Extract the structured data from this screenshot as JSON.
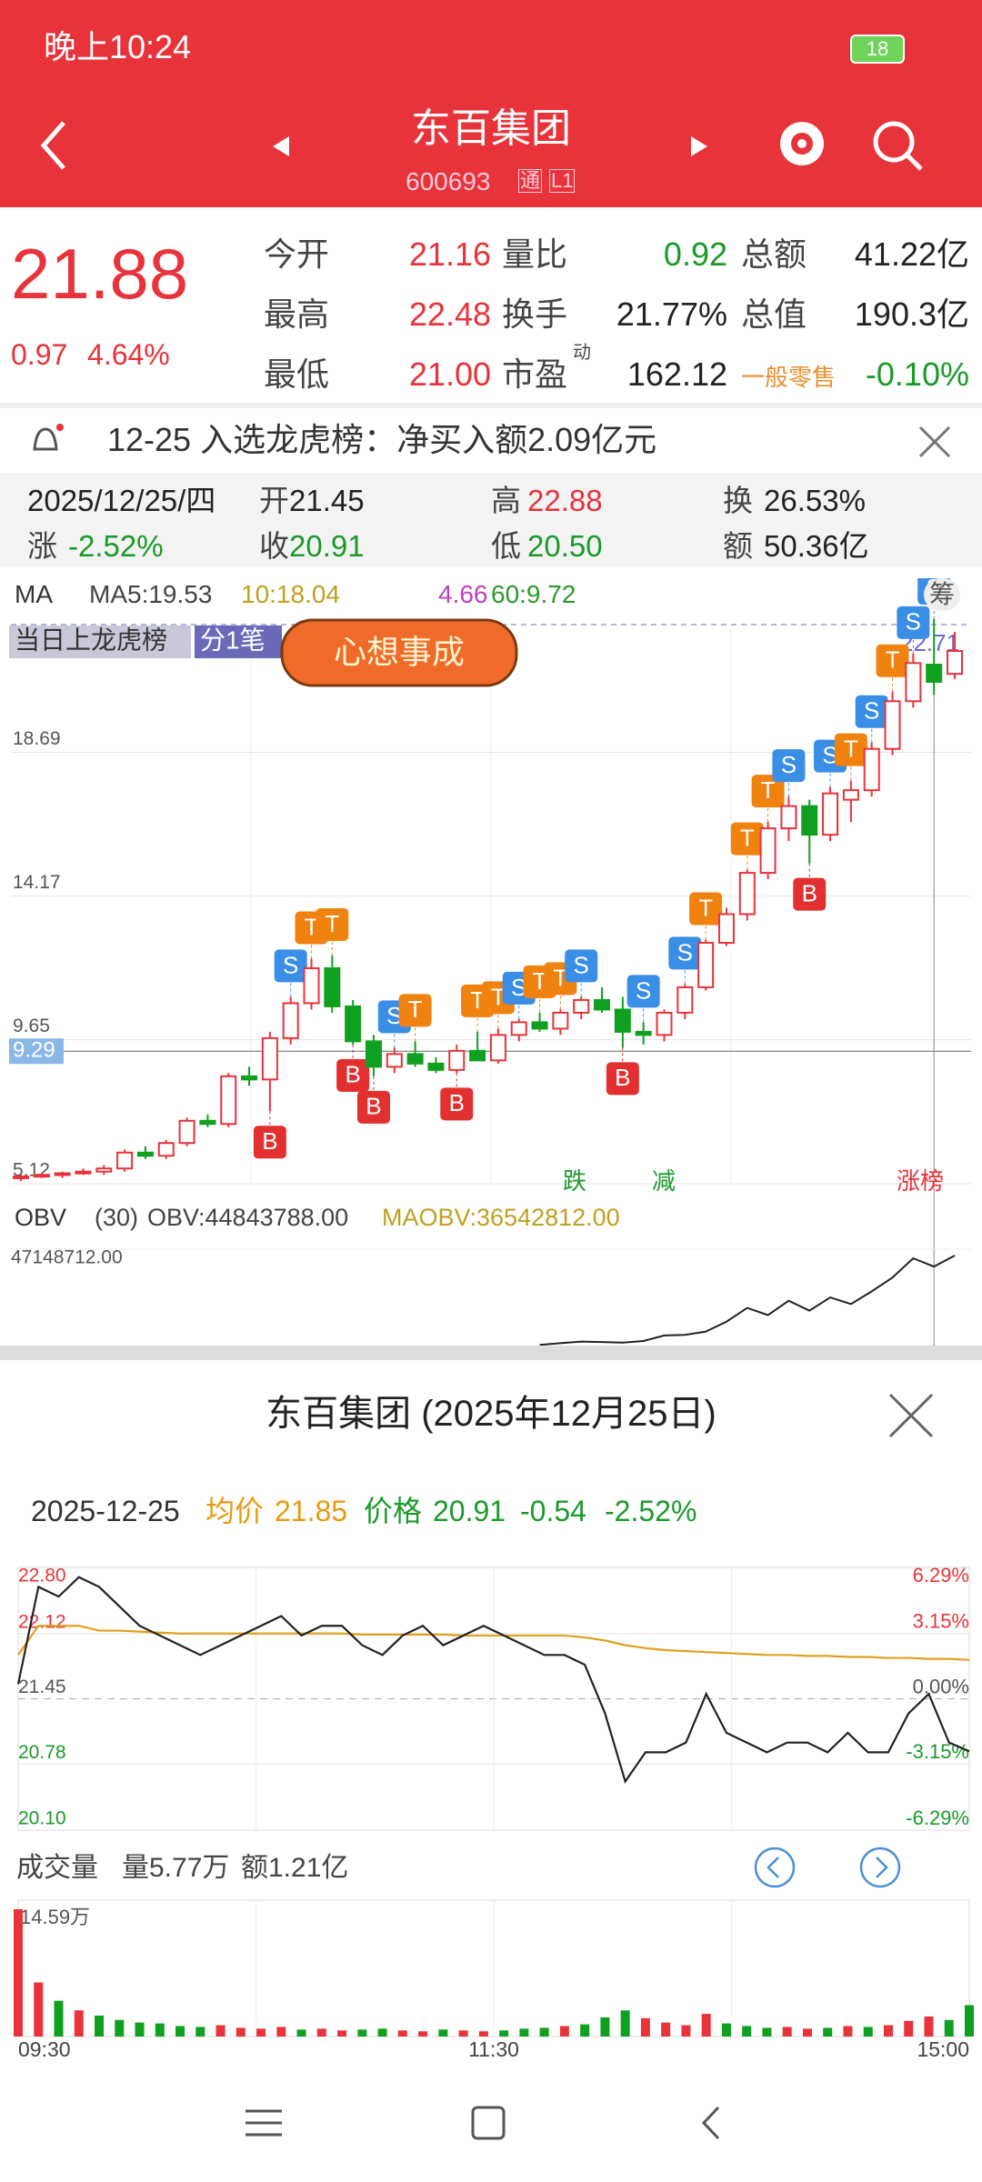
{
  "status": {
    "time": "晚上10:24",
    "battery": "18"
  },
  "header": {
    "title": "东百集团",
    "code": "600693",
    "badge1": "通",
    "badge2": "L1"
  },
  "quote": {
    "price": "21.88",
    "change": "0.97",
    "change_pct": "4.64%",
    "stats": [
      [
        "今开",
        "21.16",
        "量比",
        "0.92",
        "总额",
        "41.22亿"
      ],
      [
        "最高",
        "22.48",
        "换手",
        "21.77%",
        "总值",
        "190.3亿"
      ],
      [
        "最低",
        "21.00",
        "市盈",
        "162.12",
        "一般零售",
        "-0.10%"
      ]
    ],
    "pe_sup": "动"
  },
  "notice": "12-25 入选龙虎榜：净买入额2.09亿元",
  "day": {
    "date": "2025/12/25/四",
    "open_l": "开",
    "open": "21.45",
    "high_l": "高",
    "high": "22.88",
    "turn_l": "换",
    "turn": "26.53%",
    "chg_l": "涨",
    "chg": "-2.52%",
    "close_l": "收",
    "close": "20.91",
    "low_l": "低",
    "low": "20.50",
    "amt_l": "额",
    "amt": "50.36亿"
  },
  "ma": {
    "name": "MA",
    "ma5": "MA5:19.53",
    "ma10": "10:18.04",
    "ma30": "4.66",
    "ma60": "60:9.72",
    "chip": "筹"
  },
  "tags": {
    "t1": "当日上龙虎榜",
    "t2": "分1笔",
    "sticker": "心想事成",
    "down": "跌",
    "reduce": "减",
    "list": "涨榜"
  },
  "kline": {
    "ylim": [
      5.12,
      22.71
    ],
    "yticks": [
      5.12,
      9.65,
      14.17,
      18.69
    ],
    "top_label": 22.71,
    "cursor": 9.29,
    "candles": [
      {
        "ohlc": [
          5.3,
          5.4,
          5.2,
          5.35
        ]
      },
      {
        "ohlc": [
          5.35,
          5.45,
          5.3,
          5.4
        ]
      },
      {
        "ohlc": [
          5.4,
          5.5,
          5.3,
          5.45
        ]
      },
      {
        "ohlc": [
          5.45,
          5.6,
          5.4,
          5.5
        ]
      },
      {
        "ohlc": [
          5.5,
          5.7,
          5.4,
          5.6
        ]
      },
      {
        "ohlc": [
          5.6,
          6.2,
          5.5,
          6.1
        ]
      },
      {
        "ohlc": [
          6.1,
          6.3,
          5.9,
          6.0
        ]
      },
      {
        "ohlc": [
          6.0,
          6.5,
          5.9,
          6.4
        ]
      },
      {
        "ohlc": [
          6.4,
          7.2,
          6.3,
          7.1
        ]
      },
      {
        "ohlc": [
          7.1,
          7.3,
          6.9,
          7.0
        ]
      },
      {
        "ohlc": [
          7.0,
          8.6,
          6.9,
          8.5
        ]
      },
      {
        "ohlc": [
          8.5,
          8.8,
          8.2,
          8.4
        ]
      },
      {
        "ohlc": [
          8.4,
          9.9,
          7.4,
          9.7
        ],
        "tags": [
          "B"
        ]
      },
      {
        "ohlc": [
          9.7,
          11.0,
          9.5,
          10.8
        ],
        "tags": [
          "S"
        ]
      },
      {
        "ohlc": [
          10.8,
          12.2,
          10.6,
          11.9
        ],
        "tags": [
          "T"
        ]
      },
      {
        "ohlc": [
          11.9,
          12.3,
          10.5,
          10.7
        ],
        "tags": [
          "T"
        ]
      },
      {
        "ohlc": [
          10.7,
          10.9,
          9.5,
          9.6
        ],
        "tags": [
          "B"
        ]
      },
      {
        "ohlc": [
          9.6,
          9.8,
          8.5,
          8.8
        ],
        "tags": [
          "B"
        ]
      },
      {
        "ohlc": [
          8.8,
          9.4,
          8.6,
          9.2
        ],
        "tags": [
          "S"
        ]
      },
      {
        "ohlc": [
          9.2,
          9.6,
          8.8,
          8.9
        ],
        "tags": [
          "T"
        ]
      },
      {
        "ohlc": [
          8.9,
          9.1,
          8.6,
          8.7
        ]
      },
      {
        "ohlc": [
          8.7,
          9.5,
          8.6,
          9.3
        ],
        "tags": [
          "B"
        ]
      },
      {
        "ohlc": [
          9.3,
          9.9,
          9.1,
          9.0
        ],
        "tags": [
          "T"
        ]
      },
      {
        "ohlc": [
          9.0,
          10.0,
          8.9,
          9.8
        ],
        "tags": [
          "T"
        ]
      },
      {
        "ohlc": [
          9.8,
          10.3,
          9.6,
          10.2
        ],
        "tags": [
          "S"
        ]
      },
      {
        "ohlc": [
          10.2,
          10.5,
          9.9,
          10.0
        ],
        "tags": [
          "T"
        ]
      },
      {
        "ohlc": [
          10.0,
          10.6,
          9.8,
          10.5
        ],
        "tags": [
          "T"
        ]
      },
      {
        "ohlc": [
          10.5,
          11.0,
          10.3,
          10.9
        ],
        "tags": [
          "S"
        ]
      },
      {
        "ohlc": [
          10.9,
          11.3,
          10.5,
          10.6
        ]
      },
      {
        "ohlc": [
          10.6,
          11.0,
          9.4,
          9.9
        ],
        "tags": [
          "B"
        ]
      },
      {
        "ohlc": [
          9.9,
          10.2,
          9.5,
          9.8
        ],
        "tags": [
          "S"
        ]
      },
      {
        "ohlc": [
          9.8,
          10.6,
          9.6,
          10.5
        ]
      },
      {
        "ohlc": [
          10.5,
          11.4,
          10.3,
          11.3
        ],
        "tags": [
          "S"
        ]
      },
      {
        "ohlc": [
          11.3,
          12.8,
          11.2,
          12.7
        ],
        "tags": [
          "T"
        ]
      },
      {
        "ohlc": [
          12.7,
          13.8,
          12.6,
          13.6
        ]
      },
      {
        "ohlc": [
          13.6,
          15.0,
          13.4,
          14.9
        ],
        "tags": [
          "T"
        ]
      },
      {
        "ohlc": [
          14.9,
          16.5,
          14.7,
          16.3
        ],
        "tags": [
          "T"
        ]
      },
      {
        "ohlc": [
          16.3,
          17.3,
          15.9,
          17.0
        ],
        "tags": [
          "S"
        ]
      },
      {
        "ohlc": [
          17.0,
          17.2,
          15.2,
          16.1
        ],
        "tags": [
          "B"
        ]
      },
      {
        "ohlc": [
          16.1,
          17.6,
          15.9,
          17.4
        ],
        "tags": [
          "S"
        ]
      },
      {
        "ohlc": [
          17.2,
          17.8,
          16.5,
          17.5
        ],
        "tags": [
          "T"
        ]
      },
      {
        "ohlc": [
          17.5,
          19.0,
          17.3,
          18.8
        ],
        "tags": [
          "S"
        ]
      },
      {
        "ohlc": [
          18.8,
          20.6,
          18.6,
          20.3
        ],
        "tags": [
          "T"
        ]
      },
      {
        "ohlc": [
          20.3,
          21.8,
          20.1,
          21.5
        ],
        "tags": [
          "S"
        ]
      },
      {
        "ohlc": [
          21.45,
          22.88,
          20.5,
          20.91
        ],
        "tags": [
          "S"
        ]
      },
      {
        "ohlc": [
          21.16,
          22.48,
          21.0,
          21.88
        ]
      }
    ]
  },
  "obv": {
    "name": "OBV",
    "period": "(30)",
    "obv": "OBV:44843788.00",
    "maobv": "MAOBV:36542812.00",
    "ylim": [
      30000000,
      47148712
    ],
    "top": {
      "value": 47148712,
      "label": "47148712.00"
    },
    "values": [
      null,
      null,
      null,
      null,
      null,
      null,
      null,
      null,
      null,
      null,
      null,
      null,
      null,
      null,
      null,
      null,
      null,
      null,
      null,
      null,
      null,
      null,
      null,
      null,
      null,
      29800000,
      30100000,
      30400000,
      30300000,
      30200000,
      30500000,
      31500000,
      31600000,
      32200000,
      34000000,
      36500000,
      35200000,
      37800000,
      36000000,
      38400000,
      37200000,
      39500000,
      42000000,
      45500000,
      44000000,
      46000000
    ]
  },
  "popup": {
    "title": "东百集团 (2025年12月25日)",
    "date": "2025-12-25",
    "avg_l": "均价",
    "avg": "21.85",
    "price_l": "价格",
    "price": "20.91",
    "chg": "-0.54",
    "pct": "-2.52%",
    "vol_title": "成交量",
    "vol": "量5.77万",
    "amt": "额1.21亿"
  },
  "intraday": {
    "ylim": [
      20.1,
      22.8
    ],
    "yticks": [
      {
        "value": 22.8,
        "label": "22.80"
      },
      22.12,
      21.45,
      20.78,
      {
        "value": 20.1,
        "label": "20.10"
      }
    ],
    "pct_labels": [
      "6.29%",
      "3.15%",
      "0.00%",
      "-3.15%",
      "-6.29%"
    ],
    "xticks": [
      "09:30",
      "11:30",
      "15:00"
    ],
    "price": [
      21.6,
      22.6,
      22.5,
      22.7,
      22.6,
      22.4,
      22.2,
      22.1,
      22.0,
      21.9,
      22.0,
      22.1,
      22.2,
      22.3,
      22.1,
      22.2,
      22.2,
      22.0,
      21.9,
      22.1,
      22.2,
      22.0,
      22.1,
      22.2,
      22.1,
      22.0,
      21.9,
      21.9,
      21.8,
      21.3,
      20.6,
      20.9,
      20.9,
      21.0,
      21.5,
      21.1,
      21.0,
      20.9,
      21.0,
      21.0,
      20.9,
      21.1,
      20.9,
      20.9,
      21.3,
      21.5,
      21.0,
      20.91
    ],
    "avg": [
      21.9,
      22.2,
      22.2,
      22.2,
      22.15,
      22.15,
      22.14,
      22.13,
      22.12,
      22.12,
      22.12,
      22.12,
      22.12,
      22.12,
      22.12,
      22.12,
      22.12,
      22.11,
      22.11,
      22.11,
      22.11,
      22.11,
      22.1,
      22.1,
      22.1,
      22.1,
      22.1,
      22.1,
      22.08,
      22.05,
      22.0,
      21.97,
      21.95,
      21.94,
      21.93,
      21.92,
      21.91,
      21.9,
      21.9,
      21.89,
      21.89,
      21.88,
      21.88,
      21.87,
      21.87,
      21.86,
      21.86,
      21.85
    ],
    "vol_ylim": [
      0,
      14.59
    ],
    "vol_top": {
      "value": 14.59,
      "label": "14.59万"
    },
    "volume": [
      14.59,
      6.2,
      4.1,
      3.0,
      2.4,
      1.9,
      1.6,
      1.5,
      1.2,
      1.1,
      1.3,
      1.0,
      0.9,
      1.1,
      0.8,
      0.9,
      0.7,
      0.8,
      0.9,
      0.7,
      0.6,
      0.8,
      0.7,
      0.6,
      0.7,
      0.9,
      1.0,
      1.2,
      1.4,
      2.2,
      3.0,
      2.1,
      1.6,
      1.3,
      2.6,
      1.5,
      1.2,
      1.0,
      1.1,
      0.9,
      1.0,
      1.2,
      1.1,
      1.3,
      1.8,
      2.3,
      1.9,
      3.6
    ]
  }
}
